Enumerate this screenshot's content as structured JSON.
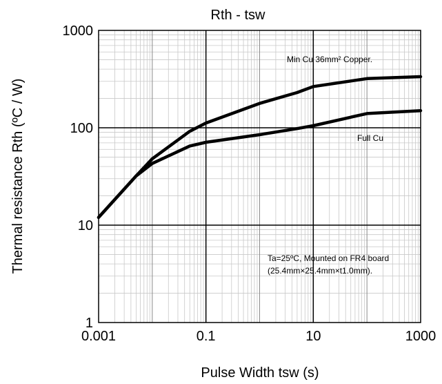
{
  "chart_data": {
    "type": "line",
    "title": "Rth - tsw",
    "xlabel": "Pulse Width tsw (s)",
    "ylabel": "Thermal resistance Rth (ºC / W)",
    "x_scale": "log",
    "y_scale": "log",
    "xlim": [
      0.001,
      1000
    ],
    "ylim": [
      1,
      1000
    ],
    "x_ticks": [
      "0.001",
      "0.1",
      "10",
      "1000"
    ],
    "y_ticks": [
      "1",
      "10",
      "100",
      "1000"
    ],
    "grid": true,
    "series": [
      {
        "name": "Min Cu 36mm² Copper.",
        "x": [
          0.001,
          0.005,
          0.01,
          0.05,
          0.1,
          1,
          5,
          10,
          100,
          1000
        ],
        "y": [
          12,
          32,
          48,
          92,
          112,
          178,
          230,
          265,
          320,
          335
        ]
      },
      {
        "name": "Full Cu",
        "x": [
          0.001,
          0.005,
          0.01,
          0.05,
          0.1,
          1,
          5,
          10,
          100,
          1000
        ],
        "y": [
          12,
          32,
          43,
          65,
          71,
          85,
          98,
          105,
          140,
          150
        ]
      }
    ],
    "annotations": [
      "Min Cu 36mm² Copper.",
      "Full Cu",
      "Ta=25ºC, Mounted on FR4 board",
      "(25.4mm×25.4mm×t1.0mm)."
    ]
  }
}
